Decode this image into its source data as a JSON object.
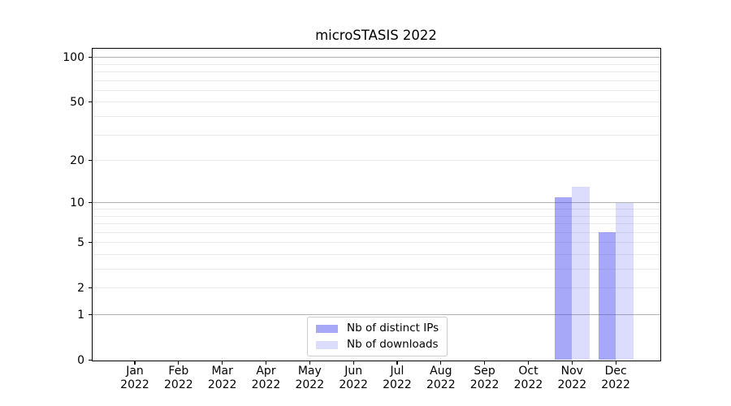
{
  "figure": {
    "title": "microSTASIS 2022"
  },
  "chart_data": {
    "type": "bar",
    "title": "microSTASIS 2022",
    "categories": [
      "Jan",
      "Feb",
      "Mar",
      "Apr",
      "May",
      "Jun",
      "Jul",
      "Aug",
      "Sep",
      "Oct",
      "Nov",
      "Dec"
    ],
    "x_tick_second_line": "2022",
    "series": [
      {
        "name": "Nb of distinct IPs",
        "key": "distinct-ips",
        "color": "rgba(62,62,240,0.45)",
        "values": [
          0,
          0,
          0,
          0,
          0,
          0,
          0,
          0,
          0,
          0,
          11,
          6
        ]
      },
      {
        "name": "Nb of downloads",
        "key": "downloads",
        "color": "rgba(62,62,240,0.18)",
        "values": [
          0,
          0,
          0,
          0,
          0,
          0,
          0,
          0,
          0,
          0,
          13,
          10
        ]
      }
    ],
    "y_axis": {
      "scale": "log1p",
      "tick_labels": [
        0,
        1,
        2,
        5,
        10,
        20,
        50,
        100
      ],
      "major_grid": [
        1,
        10,
        100
      ],
      "minor_grid": [
        2,
        3,
        4,
        5,
        6,
        7,
        8,
        9,
        20,
        30,
        40,
        50,
        60,
        70,
        80,
        90
      ],
      "ylim": [
        0,
        114
      ]
    },
    "legend_position": "lower center",
    "grid": true
  },
  "colors": {
    "background": "#ffffff",
    "spine": "#000000",
    "text": "#000000",
    "major_grid": "#b3b3b3",
    "minor_grid": "#ebebeb",
    "legend_border": "#cccccc"
  }
}
